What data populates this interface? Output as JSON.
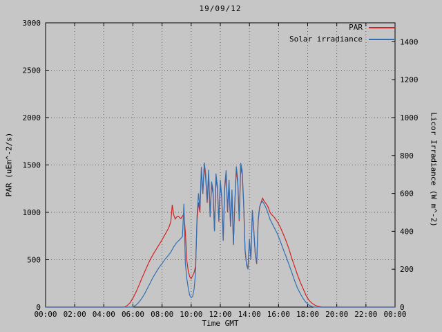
{
  "colors": {
    "background": "#c6c6c6",
    "axis": "#000000",
    "grid": "#606060",
    "par": "#d42020",
    "solar": "#3070b3"
  },
  "chart_data": {
    "type": "line",
    "title": "19/09/12",
    "xlabel": "Time GMT",
    "ylabel": "PAR (uEm^-2/s)",
    "y2label": "Licor Irradiance (W m^-2)",
    "xlim": [
      0,
      24
    ],
    "ylim": [
      0,
      3000
    ],
    "y2lim": [
      0,
      1500
    ],
    "grid": true,
    "legend_position": "top-right",
    "xtick_values": [
      0,
      2,
      4,
      6,
      8,
      10,
      12,
      14,
      16,
      18,
      20,
      22,
      24
    ],
    "xtick_labels": [
      "00:00",
      "02:00",
      "04:00",
      "06:00",
      "08:00",
      "10:00",
      "12:00",
      "14:00",
      "16:00",
      "18:00",
      "20:00",
      "22:00",
      "00:00"
    ],
    "ytick_values": [
      0,
      500,
      1000,
      1500,
      2000,
      2500,
      3000
    ],
    "ytick_labels": [
      "0",
      "500",
      "1000",
      "1500",
      "2000",
      "2500",
      "3000"
    ],
    "y2tick_values": [
      0,
      200,
      400,
      600,
      800,
      1000,
      1200,
      1400
    ],
    "y2tick_labels": [
      "0",
      "200",
      "400",
      "600",
      "800",
      "1000",
      "1200",
      "1400"
    ],
    "series": [
      {
        "name": "PAR",
        "axis": "y1",
        "color": "#d42020",
        "points": [
          [
            0,
            0
          ],
          [
            5.4,
            0
          ],
          [
            5.6,
            15
          ],
          [
            5.8,
            45
          ],
          [
            6.0,
            95
          ],
          [
            6.2,
            155
          ],
          [
            6.4,
            225
          ],
          [
            6.6,
            300
          ],
          [
            6.8,
            370
          ],
          [
            7.0,
            440
          ],
          [
            7.2,
            505
          ],
          [
            7.4,
            560
          ],
          [
            7.6,
            610
          ],
          [
            7.8,
            660
          ],
          [
            8.0,
            710
          ],
          [
            8.2,
            765
          ],
          [
            8.4,
            820
          ],
          [
            8.5,
            855
          ],
          [
            8.6,
            900
          ],
          [
            8.7,
            1080
          ],
          [
            8.8,
            975
          ],
          [
            8.9,
            930
          ],
          [
            9.0,
            950
          ],
          [
            9.1,
            960
          ],
          [
            9.2,
            945
          ],
          [
            9.3,
            935
          ],
          [
            9.4,
            960
          ],
          [
            9.5,
            980
          ],
          [
            9.6,
            790
          ],
          [
            9.7,
            490
          ],
          [
            9.8,
            380
          ],
          [
            9.9,
            320
          ],
          [
            10.0,
            300
          ],
          [
            10.1,
            330
          ],
          [
            10.2,
            365
          ],
          [
            10.3,
            430
          ],
          [
            10.4,
            905
          ],
          [
            10.5,
            1105
          ],
          [
            10.6,
            1000
          ],
          [
            10.7,
            1450
          ],
          [
            10.8,
            1195
          ],
          [
            10.9,
            1500
          ],
          [
            11.0,
            1350
          ],
          [
            11.1,
            1100
          ],
          [
            11.2,
            1400
          ],
          [
            11.3,
            950
          ],
          [
            11.4,
            1300
          ],
          [
            11.5,
            1195
          ],
          [
            11.6,
            805
          ],
          [
            11.7,
            1350
          ],
          [
            11.8,
            1250
          ],
          [
            11.9,
            900
          ],
          [
            12.0,
            1300
          ],
          [
            12.1,
            1150
          ],
          [
            12.2,
            705
          ],
          [
            12.3,
            1250
          ],
          [
            12.4,
            1400
          ],
          [
            12.5,
            1000
          ],
          [
            12.6,
            1305
          ],
          [
            12.7,
            850
          ],
          [
            12.8,
            1200
          ],
          [
            12.9,
            655
          ],
          [
            13.0,
            1105
          ],
          [
            13.1,
            1455
          ],
          [
            13.2,
            1300
          ],
          [
            13.3,
            905
          ],
          [
            13.4,
            1480
          ],
          [
            13.5,
            1400
          ],
          [
            13.6,
            1100
          ],
          [
            13.7,
            605
          ],
          [
            13.8,
            455
          ],
          [
            13.9,
            405
          ],
          [
            14.0,
            700
          ],
          [
            14.1,
            505
          ],
          [
            14.2,
            1000
          ],
          [
            14.3,
            800
          ],
          [
            14.4,
            555
          ],
          [
            14.5,
            455
          ],
          [
            14.6,
            905
          ],
          [
            14.7,
            1050
          ],
          [
            14.8,
            1105
          ],
          [
            14.9,
            1150
          ],
          [
            15.0,
            1120
          ],
          [
            15.1,
            1100
          ],
          [
            15.2,
            1080
          ],
          [
            15.3,
            1050
          ],
          [
            15.4,
            1005
          ],
          [
            15.5,
            980
          ],
          [
            15.7,
            950
          ],
          [
            15.9,
            905
          ],
          [
            16.1,
            850
          ],
          [
            16.3,
            780
          ],
          [
            16.5,
            705
          ],
          [
            16.7,
            620
          ],
          [
            16.9,
            520
          ],
          [
            17.1,
            430
          ],
          [
            17.3,
            340
          ],
          [
            17.5,
            260
          ],
          [
            17.7,
            190
          ],
          [
            17.9,
            120
          ],
          [
            18.1,
            70
          ],
          [
            18.3,
            40
          ],
          [
            18.5,
            20
          ],
          [
            18.7,
            8
          ],
          [
            19.0,
            0
          ],
          [
            24,
            0
          ]
        ]
      },
      {
        "name": "Solar irradiance",
        "axis": "y2",
        "color": "#3070b3",
        "points": [
          [
            0,
            0
          ],
          [
            6.0,
            0
          ],
          [
            6.2,
            10
          ],
          [
            6.4,
            25
          ],
          [
            6.6,
            45
          ],
          [
            6.8,
            70
          ],
          [
            7.0,
            100
          ],
          [
            7.2,
            130
          ],
          [
            7.4,
            160
          ],
          [
            7.6,
            185
          ],
          [
            7.8,
            210
          ],
          [
            8.0,
            230
          ],
          [
            8.2,
            252
          ],
          [
            8.4,
            270
          ],
          [
            8.6,
            290
          ],
          [
            8.8,
            318
          ],
          [
            9.0,
            340
          ],
          [
            9.2,
            355
          ],
          [
            9.4,
            372
          ],
          [
            9.5,
            545
          ],
          [
            9.6,
            230
          ],
          [
            9.7,
            150
          ],
          [
            9.8,
            100
          ],
          [
            9.9,
            62
          ],
          [
            10.0,
            50
          ],
          [
            10.1,
            56
          ],
          [
            10.2,
            95
          ],
          [
            10.3,
            180
          ],
          [
            10.4,
            480
          ],
          [
            10.5,
            600
          ],
          [
            10.6,
            520
          ],
          [
            10.7,
            740
          ],
          [
            10.8,
            600
          ],
          [
            10.9,
            762
          ],
          [
            11.0,
            700
          ],
          [
            11.1,
            560
          ],
          [
            11.2,
            725
          ],
          [
            11.3,
            480
          ],
          [
            11.4,
            662
          ],
          [
            11.5,
            620
          ],
          [
            11.6,
            400
          ],
          [
            11.7,
            705
          ],
          [
            11.8,
            640
          ],
          [
            11.9,
            458
          ],
          [
            12.0,
            672
          ],
          [
            12.1,
            580
          ],
          [
            12.2,
            350
          ],
          [
            12.3,
            640
          ],
          [
            12.4,
            722
          ],
          [
            12.5,
            510
          ],
          [
            12.6,
            672
          ],
          [
            12.7,
            430
          ],
          [
            12.8,
            620
          ],
          [
            12.9,
            330
          ],
          [
            13.0,
            560
          ],
          [
            13.1,
            742
          ],
          [
            13.2,
            672
          ],
          [
            13.3,
            460
          ],
          [
            13.4,
            760
          ],
          [
            13.5,
            722
          ],
          [
            13.6,
            560
          ],
          [
            13.7,
            300
          ],
          [
            13.8,
            222
          ],
          [
            13.9,
            200
          ],
          [
            14.0,
            360
          ],
          [
            14.1,
            250
          ],
          [
            14.2,
            512
          ],
          [
            14.3,
            410
          ],
          [
            14.4,
            282
          ],
          [
            14.5,
            232
          ],
          [
            14.6,
            462
          ],
          [
            14.7,
            530
          ],
          [
            14.8,
            550
          ],
          [
            14.9,
            558
          ],
          [
            15.0,
            545
          ],
          [
            15.1,
            530
          ],
          [
            15.2,
            512
          ],
          [
            15.3,
            490
          ],
          [
            15.4,
            466
          ],
          [
            15.5,
            450
          ],
          [
            15.7,
            420
          ],
          [
            15.9,
            390
          ],
          [
            16.1,
            352
          ],
          [
            16.3,
            310
          ],
          [
            16.5,
            270
          ],
          [
            16.7,
            228
          ],
          [
            16.9,
            185
          ],
          [
            17.1,
            140
          ],
          [
            17.3,
            100
          ],
          [
            17.5,
            70
          ],
          [
            17.7,
            44
          ],
          [
            17.9,
            24
          ],
          [
            18.1,
            10
          ],
          [
            18.3,
            3
          ],
          [
            18.5,
            0
          ],
          [
            24,
            0
          ]
        ]
      }
    ]
  }
}
